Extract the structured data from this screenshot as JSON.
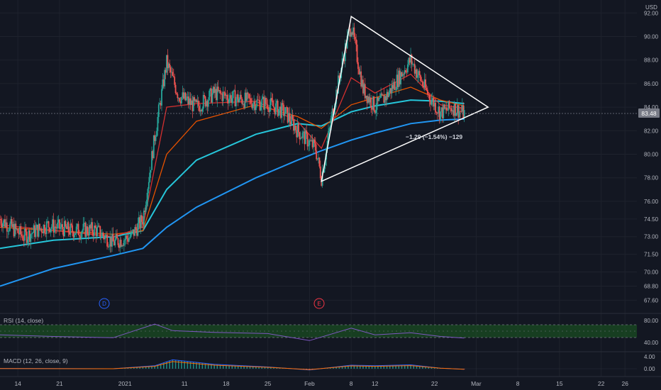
{
  "currency": "USD",
  "price_axis": {
    "ticks": [
      "92.00",
      "90.00",
      "88.00",
      "86.00",
      "84.00",
      "82.00",
      "80.00",
      "78.00",
      "76.00",
      "74.50",
      "73.00",
      "71.50",
      "70.00",
      "68.80",
      "67.60"
    ],
    "last_price": "83.48",
    "last_price_color": "#787b86"
  },
  "time_axis": {
    "ticks": [
      "14",
      "21",
      "2021",
      "11",
      "18",
      "25",
      "Feb",
      "8",
      "12",
      "22",
      "Mar",
      "8",
      "15",
      "22",
      "26"
    ]
  },
  "annotation": {
    "change_text": "−1.29 (−1.54%) −129"
  },
  "event_markers": [
    {
      "label": "D",
      "color": "#2962ff"
    },
    {
      "label": "E",
      "color": "#f23645"
    }
  ],
  "rsi": {
    "label": "RSI (14, close)",
    "ticks": [
      "80.00",
      "40.00"
    ],
    "color": "#7e57c2",
    "band_color": "#1b5e20"
  },
  "macd": {
    "label": "MACD (12, 26, close, 9)",
    "ticks": [
      "4.00",
      "0.00"
    ]
  },
  "colors": {
    "background": "#131722",
    "up": "#26a69a",
    "down": "#ef5350",
    "ma_fast": "#d32f2f",
    "ma_mid": "#e65100",
    "ma_slow": "#26c6da",
    "ma_long": "#2196f3",
    "triangle": "#ffffff",
    "grid": "#1e222d"
  },
  "chart_data": {
    "type": "candlestick",
    "ylim": [
      66.6,
      93.1
    ],
    "x_range": [
      "2020-12-11",
      "2021-03-28"
    ],
    "price_anchors": [
      [
        "2020-12-11",
        74.5
      ],
      [
        "2020-12-15",
        73.0
      ],
      [
        "2020-12-19",
        74.0
      ],
      [
        "2020-12-23",
        73.5
      ],
      [
        "2020-12-27",
        73.6
      ],
      [
        "2020-12-30",
        72.5
      ],
      [
        "2021-01-02",
        73.0
      ],
      [
        "2021-01-04",
        74.5
      ],
      [
        "2021-01-06",
        81.5
      ],
      [
        "2021-01-08",
        87.8
      ],
      [
        "2021-01-10",
        85.0
      ],
      [
        "2021-01-13",
        84.0
      ],
      [
        "2021-01-16",
        85.2
      ],
      [
        "2021-01-19",
        84.8
      ],
      [
        "2021-01-22",
        84.5
      ],
      [
        "2021-01-25",
        84.3
      ],
      [
        "2021-01-28",
        83.5
      ],
      [
        "2021-01-30",
        82.0
      ],
      [
        "2021-02-02",
        80.5
      ],
      [
        "2021-02-03",
        78.0
      ],
      [
        "2021-02-05",
        84.0
      ],
      [
        "2021-02-07",
        89.0
      ],
      [
        "2021-02-08",
        91.0
      ],
      [
        "2021-02-10",
        85.5
      ],
      [
        "2021-02-12",
        84.0
      ],
      [
        "2021-02-14",
        85.0
      ],
      [
        "2021-02-16",
        86.5
      ],
      [
        "2021-02-18",
        88.0
      ],
      [
        "2021-02-19",
        87.0
      ],
      [
        "2021-02-21",
        85.0
      ],
      [
        "2021-02-23",
        83.5
      ],
      [
        "2021-02-25",
        84.0
      ],
      [
        "2021-02-27",
        83.48
      ]
    ],
    "ma_fast": [
      [
        "2020-12-11",
        74.0
      ],
      [
        "2020-12-30",
        73.0
      ],
      [
        "2021-01-04",
        73.8
      ],
      [
        "2021-01-08",
        84.0
      ],
      [
        "2021-01-13",
        84.3
      ],
      [
        "2021-01-23",
        84.5
      ],
      [
        "2021-01-30",
        82.8
      ],
      [
        "2021-02-03",
        80.5
      ],
      [
        "2021-02-08",
        86.5
      ],
      [
        "2021-02-12",
        85.2
      ],
      [
        "2021-02-18",
        86.8
      ],
      [
        "2021-02-23",
        84.2
      ],
      [
        "2021-02-27",
        83.9
      ]
    ],
    "ma_mid": [
      [
        "2020-12-11",
        73.8
      ],
      [
        "2020-12-30",
        73.2
      ],
      [
        "2021-01-04",
        73.5
      ],
      [
        "2021-01-08",
        80.0
      ],
      [
        "2021-01-13",
        82.8
      ],
      [
        "2021-01-23",
        84.2
      ],
      [
        "2021-01-30",
        83.2
      ],
      [
        "2021-02-03",
        82.2
      ],
      [
        "2021-02-08",
        84.2
      ],
      [
        "2021-02-12",
        84.8
      ],
      [
        "2021-02-18",
        85.7
      ],
      [
        "2021-02-23",
        84.6
      ],
      [
        "2021-02-27",
        84.1
      ]
    ],
    "ma_slow": [
      [
        "2020-12-11",
        72.0
      ],
      [
        "2020-12-20",
        72.7
      ],
      [
        "2020-12-30",
        73.0
      ],
      [
        "2021-01-04",
        73.5
      ],
      [
        "2021-01-08",
        77.0
      ],
      [
        "2021-01-13",
        79.5
      ],
      [
        "2021-01-23",
        81.7
      ],
      [
        "2021-01-30",
        82.6
      ],
      [
        "2021-02-03",
        82.4
      ],
      [
        "2021-02-08",
        83.6
      ],
      [
        "2021-02-12",
        84.1
      ],
      [
        "2021-02-18",
        84.6
      ],
      [
        "2021-02-23",
        84.5
      ],
      [
        "2021-02-27",
        84.3
      ]
    ],
    "ma_long": [
      [
        "2020-12-11",
        68.8
      ],
      [
        "2020-12-20",
        70.3
      ],
      [
        "2020-12-30",
        71.4
      ],
      [
        "2021-01-04",
        72.0
      ],
      [
        "2021-01-08",
        73.8
      ],
      [
        "2021-01-13",
        75.5
      ],
      [
        "2021-01-23",
        78.0
      ],
      [
        "2021-01-30",
        79.5
      ],
      [
        "2021-02-03",
        80.3
      ],
      [
        "2021-02-08",
        81.2
      ],
      [
        "2021-02-12",
        81.8
      ],
      [
        "2021-02-18",
        82.6
      ],
      [
        "2021-02-23",
        82.9
      ],
      [
        "2021-02-27",
        83.0
      ]
    ],
    "triangle": [
      [
        "2021-02-08",
        91.7
      ],
      [
        "2021-03-03",
        84.0
      ],
      [
        "2021-02-03",
        77.7
      ]
    ],
    "rsi_values": [
      [
        "2020-12-11",
        52
      ],
      [
        "2020-12-20",
        48
      ],
      [
        "2020-12-30",
        45
      ],
      [
        "2021-01-06",
        78
      ],
      [
        "2021-01-09",
        62
      ],
      [
        "2021-01-16",
        58
      ],
      [
        "2021-01-25",
        55
      ],
      [
        "2021-02-01",
        38
      ],
      [
        "2021-02-08",
        68
      ],
      [
        "2021-02-12",
        52
      ],
      [
        "2021-02-18",
        57
      ],
      [
        "2021-02-23",
        48
      ],
      [
        "2021-02-27",
        44
      ]
    ],
    "macd_values": [
      [
        "2020-12-11",
        0.1
      ],
      [
        "2020-12-30",
        0.0
      ],
      [
        "2021-01-06",
        1.0
      ],
      [
        "2021-01-09",
        3.0
      ],
      [
        "2021-01-16",
        1.5
      ],
      [
        "2021-01-25",
        0.6
      ],
      [
        "2021-02-01",
        -0.4
      ],
      [
        "2021-02-08",
        1.2
      ],
      [
        "2021-02-12",
        1.0
      ],
      [
        "2021-02-18",
        1.3
      ],
      [
        "2021-02-23",
        0.2
      ],
      [
        "2021-02-27",
        -0.2
      ]
    ]
  }
}
